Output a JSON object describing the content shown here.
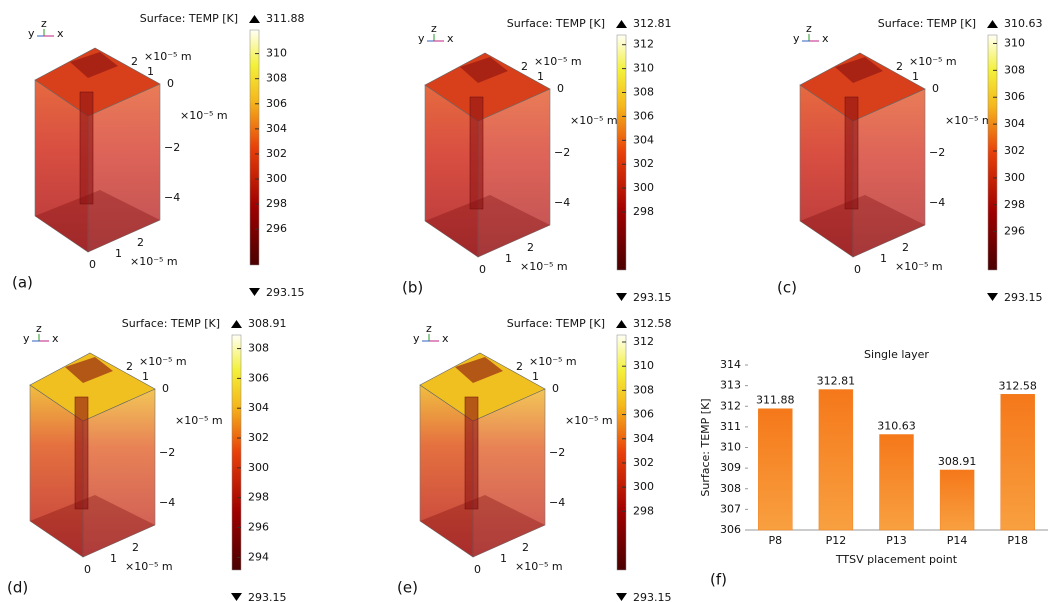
{
  "chart_data": [
    {
      "type": "surface3d",
      "panel_label": "(a)",
      "colorbar_title": "Surface: TEMP [K]",
      "clim": [
        293.15,
        311.88
      ],
      "cticks": [
        296,
        298,
        300,
        302,
        304,
        306,
        308,
        310
      ],
      "triad": [
        "y",
        "z",
        "x"
      ],
      "axis_unit": "×10⁻⁵ m",
      "x_ticks": [
        "0",
        "1",
        "2"
      ],
      "y_ticks": [
        "2",
        "1",
        "0"
      ],
      "z_ticks": [
        "−2",
        "−4"
      ]
    },
    {
      "type": "surface3d",
      "panel_label": "(b)",
      "colorbar_title": "Surface: TEMP [K]",
      "clim": [
        293.15,
        312.81
      ],
      "cticks": [
        298,
        300,
        302,
        304,
        306,
        308,
        310,
        312
      ],
      "triad": [
        "y",
        "z",
        "x"
      ],
      "axis_unit": "×10⁻⁵ m",
      "x_ticks": [
        "0",
        "1",
        "2"
      ],
      "y_ticks": [
        "2",
        "1",
        "0"
      ],
      "z_ticks": [
        "−2",
        "−4"
      ]
    },
    {
      "type": "surface3d",
      "panel_label": "(c)",
      "colorbar_title": "Surface: TEMP [K]",
      "clim": [
        293.15,
        310.63
      ],
      "cticks": [
        296,
        298,
        300,
        302,
        304,
        306,
        308,
        310
      ],
      "triad": [
        "y",
        "z",
        "x"
      ],
      "axis_unit": "×10⁻⁵ m",
      "x_ticks": [
        "0",
        "1",
        "2"
      ],
      "y_ticks": [
        "2",
        "1",
        "0"
      ],
      "z_ticks": [
        "−2",
        "−4"
      ]
    },
    {
      "type": "surface3d",
      "panel_label": "(d)",
      "colorbar_title": "Surface: TEMP [K]",
      "clim": [
        293.15,
        308.91
      ],
      "cticks": [
        294,
        296,
        298,
        300,
        302,
        304,
        306,
        308
      ],
      "triad": [
        "y",
        "z",
        "x"
      ],
      "axis_unit": "×10⁻⁵ m",
      "x_ticks": [
        "0",
        "1",
        "2"
      ],
      "y_ticks": [
        "2",
        "1",
        "0"
      ],
      "z_ticks": [
        "−2",
        "−4"
      ]
    },
    {
      "type": "surface3d",
      "panel_label": "(e)",
      "colorbar_title": "Surface: TEMP [K]",
      "clim": [
        293.15,
        312.58
      ],
      "cticks": [
        298,
        300,
        302,
        304,
        306,
        308,
        310,
        312
      ],
      "triad": [
        "y",
        "z",
        "x"
      ],
      "axis_unit": "×10⁻⁵ m",
      "x_ticks": [
        "0",
        "1",
        "2"
      ],
      "y_ticks": [
        "2",
        "1",
        "0"
      ],
      "z_ticks": [
        "−2",
        "−4"
      ]
    },
    {
      "type": "bar",
      "panel_label": "(f)",
      "title": "Single layer",
      "y_label": "Surface: TEMP [K]",
      "x_label": "TTSV placement point",
      "categories": [
        "P8",
        "P12",
        "P13",
        "P14",
        "P18"
      ],
      "values": [
        311.88,
        312.81,
        310.63,
        308.91,
        312.58
      ],
      "color": "#f07d1a",
      "ylim": [
        306,
        314
      ],
      "yticks": [
        306,
        307,
        308,
        309,
        310,
        311,
        312,
        313,
        314
      ]
    }
  ]
}
